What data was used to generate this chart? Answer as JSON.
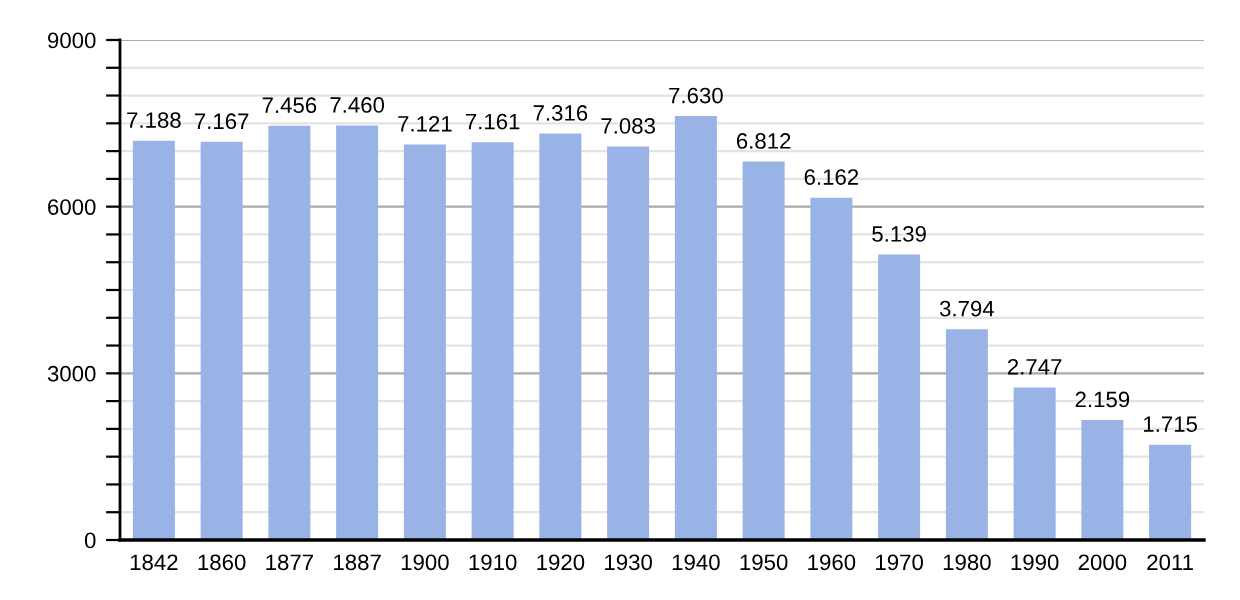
{
  "chart_data": {
    "type": "bar",
    "categories": [
      "1842",
      "1860",
      "1877",
      "1887",
      "1900",
      "1910",
      "1920",
      "1930",
      "1940",
      "1950",
      "1960",
      "1970",
      "1980",
      "1990",
      "2000",
      "2011"
    ],
    "values": [
      7188,
      7167,
      7456,
      7460,
      7121,
      7161,
      7316,
      7083,
      7630,
      6812,
      6162,
      5139,
      3794,
      2747,
      2159,
      1715
    ],
    "value_labels": [
      "7.188",
      "7.167",
      "7.456",
      "7.460",
      "7.121",
      "7.161",
      "7.316",
      "7.083",
      "7.630",
      "6.812",
      "6.162",
      "5.139",
      "3.794",
      "2.747",
      "2.159",
      "1.715"
    ],
    "color": "#99b3e6",
    "ylim": [
      0,
      9000
    ],
    "yticks": [
      0,
      {
        "value": 500,
        "label": null
      },
      {
        "value": 1000,
        "label": null
      },
      {
        "value": 1500,
        "label": null
      },
      {
        "value": 2000,
        "label": null
      },
      {
        "value": 2500,
        "label": null
      },
      3000,
      {
        "value": 3500,
        "label": null
      },
      {
        "value": 4000,
        "label": null
      },
      {
        "value": 4500,
        "label": null
      },
      {
        "value": 5000,
        "label": null
      },
      {
        "value": 5500,
        "label": null
      },
      6000,
      {
        "value": 6500,
        "label": null
      },
      {
        "value": 7000,
        "label": null
      },
      {
        "value": 7500,
        "label": null
      },
      {
        "value": 8000,
        "label": null
      },
      {
        "value": 8500,
        "label": null
      },
      9000
    ],
    "grid": "y"
  }
}
